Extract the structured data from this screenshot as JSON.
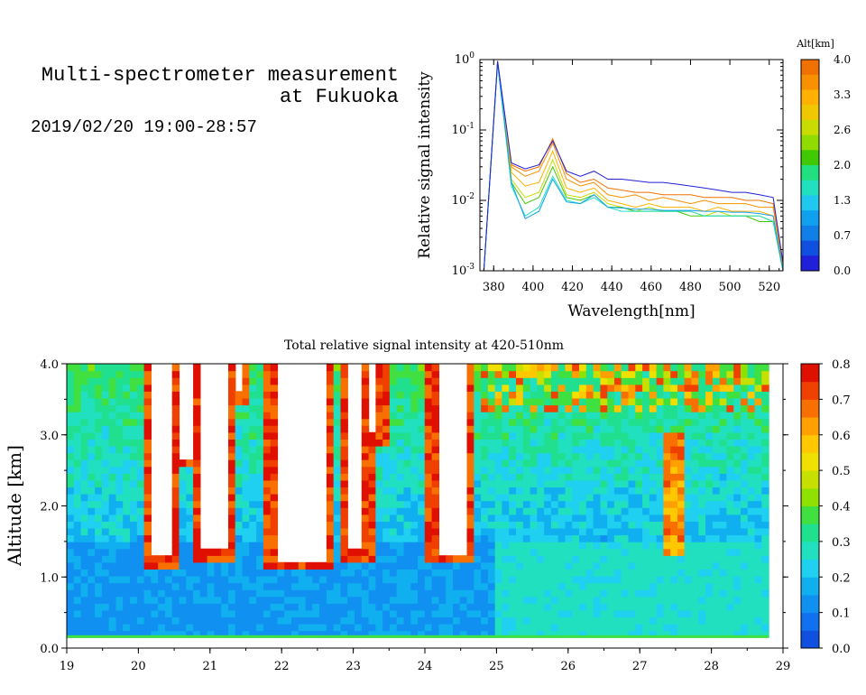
{
  "header": {
    "title": "Multi-spectrometer measurement\nat Fukuoka",
    "subtitle": "2019/02/20 19:00-28:57"
  },
  "chart_data": [
    {
      "type": "line",
      "xlabel": "Wavelength[nm]",
      "ylabel": "Relative signal intensity",
      "x_ticks": [
        "380",
        "400",
        "420",
        "440",
        "460",
        "480",
        "500",
        "520"
      ],
      "y_ticks": [
        "10^-3",
        "10^-2",
        "10^-1",
        "10^0"
      ],
      "y_scale": "log",
      "xlim": [
        373,
        527
      ],
      "ylim": [
        0.001,
        1
      ],
      "legend": {
        "title": "Alt[km]",
        "labels": [
          "4.0",
          "3.3",
          "2.6",
          "2.0",
          "1.3",
          "0.7",
          "0.0"
        ],
        "colors": [
          "#f07000",
          "#f89000",
          "#ffb000",
          "#f0c800",
          "#c8dc00",
          "#90dc00",
          "#40c800",
          "#20e080",
          "#20e0c0",
          "#20c8f0",
          "#10a0f0",
          "#1080e8",
          "#1050e0",
          "#2020d8"
        ]
      },
      "x": [
        375,
        382,
        389,
        396,
        403,
        410,
        417,
        424,
        431,
        438,
        445,
        452,
        459,
        466,
        473,
        480,
        487,
        494,
        501,
        508,
        515,
        522,
        527
      ],
      "series": [
        {
          "color": "#f07000",
          "values": [
            0.001,
            0.95,
            0.032,
            0.026,
            0.03,
            0.075,
            0.024,
            0.018,
            0.02,
            0.015,
            0.014,
            0.013,
            0.013,
            0.012,
            0.012,
            0.012,
            0.011,
            0.011,
            0.011,
            0.01,
            0.01,
            0.009,
            0.0012
          ]
        },
        {
          "color": "#f89000",
          "values": [
            0.001,
            0.92,
            0.03,
            0.022,
            0.026,
            0.065,
            0.02,
            0.016,
            0.018,
            0.012,
            0.011,
            0.012,
            0.01,
            0.011,
            0.01,
            0.009,
            0.01,
            0.009,
            0.009,
            0.009,
            0.008,
            0.008,
            0.0011
          ]
        },
        {
          "color": "#ffb000",
          "values": [
            0.001,
            0.9,
            0.025,
            0.016,
            0.018,
            0.05,
            0.015,
            0.013,
            0.015,
            0.01,
            0.009,
            0.008,
            0.009,
            0.008,
            0.008,
            0.008,
            0.007,
            0.008,
            0.007,
            0.007,
            0.007,
            0.006,
            0.001
          ]
        },
        {
          "color": "#c8dc00",
          "values": [
            0.001,
            0.88,
            0.02,
            0.011,
            0.013,
            0.038,
            0.012,
            0.011,
            0.013,
            0.009,
            0.008,
            0.007,
            0.008,
            0.007,
            0.007,
            0.007,
            0.006,
            0.007,
            0.006,
            0.006,
            0.006,
            0.005,
            0.001
          ]
        },
        {
          "color": "#40c800",
          "values": [
            0.001,
            0.9,
            0.018,
            0.009,
            0.011,
            0.03,
            0.011,
            0.01,
            0.012,
            0.008,
            0.008,
            0.007,
            0.007,
            0.007,
            0.007,
            0.006,
            0.006,
            0.006,
            0.006,
            0.006,
            0.005,
            0.005,
            0.001
          ]
        },
        {
          "color": "#20e0c0",
          "values": [
            0.001,
            0.9,
            0.016,
            0.006,
            0.008,
            0.022,
            0.01,
            0.009,
            0.011,
            0.008,
            0.007,
            0.007,
            0.007,
            0.007,
            0.007,
            0.007,
            0.006,
            0.006,
            0.006,
            0.006,
            0.006,
            0.005,
            0.001
          ]
        },
        {
          "color": "#10a0f0",
          "values": [
            0.001,
            0.92,
            0.018,
            0.0055,
            0.007,
            0.02,
            0.0095,
            0.009,
            0.012,
            0.008,
            0.0078,
            0.0075,
            0.0075,
            0.0072,
            0.0072,
            0.0072,
            0.007,
            0.007,
            0.0068,
            0.0068,
            0.0065,
            0.006,
            0.001
          ]
        },
        {
          "color": "#2020d8",
          "values": [
            0.001,
            0.95,
            0.034,
            0.028,
            0.032,
            0.07,
            0.026,
            0.022,
            0.026,
            0.02,
            0.02,
            0.019,
            0.018,
            0.018,
            0.017,
            0.016,
            0.015,
            0.014,
            0.013,
            0.013,
            0.012,
            0.011,
            0.0013
          ]
        }
      ]
    },
    {
      "type": "heatmap",
      "title": "Total relative signal intensity at 420-510nm",
      "xlabel": "",
      "ylabel": "Altitude [km]",
      "x_ticks": [
        "19",
        "20",
        "21",
        "22",
        "23",
        "24",
        "25",
        "26",
        "27",
        "28",
        "29"
      ],
      "y_ticks": [
        "0.0",
        "1.0",
        "2.0",
        "3.0",
        "4.0"
      ],
      "xlim": [
        19,
        29
      ],
      "ylim": [
        0,
        4
      ],
      "colorbar": {
        "labels": [
          "0.0",
          "0.1",
          "0.2",
          "0.3",
          "0.4",
          "0.5",
          "0.6",
          "0.7",
          "0.8"
        ],
        "colors": [
          "#1050e0",
          "#1070f0",
          "#1090f0",
          "#10b0f0",
          "#20d0f0",
          "#20e0c0",
          "#20e090",
          "#40e040",
          "#90e000",
          "#c8e000",
          "#f0e000",
          "#ffc800",
          "#ffa000",
          "#f87000",
          "#f04000",
          "#e01000"
        ]
      },
      "cloud_bands": [
        {
          "x0": 20.15,
          "x1": 20.45,
          "base": 1.3
        },
        {
          "x0": 20.55,
          "x1": 20.75,
          "base": 2.7
        },
        {
          "x0": 20.9,
          "x1": 21.25,
          "base": 1.4
        },
        {
          "x0": 21.35,
          "x1": 21.45,
          "base": 3.6
        },
        {
          "x0": 21.9,
          "x1": 22.6,
          "base": 1.25
        },
        {
          "x0": 22.9,
          "x1": 23.15,
          "base": 1.4
        },
        {
          "x0": 23.25,
          "x1": 23.35,
          "base": 3.0
        },
        {
          "x0": 24.15,
          "x1": 24.6,
          "base": 1.35
        }
      ]
    }
  ]
}
